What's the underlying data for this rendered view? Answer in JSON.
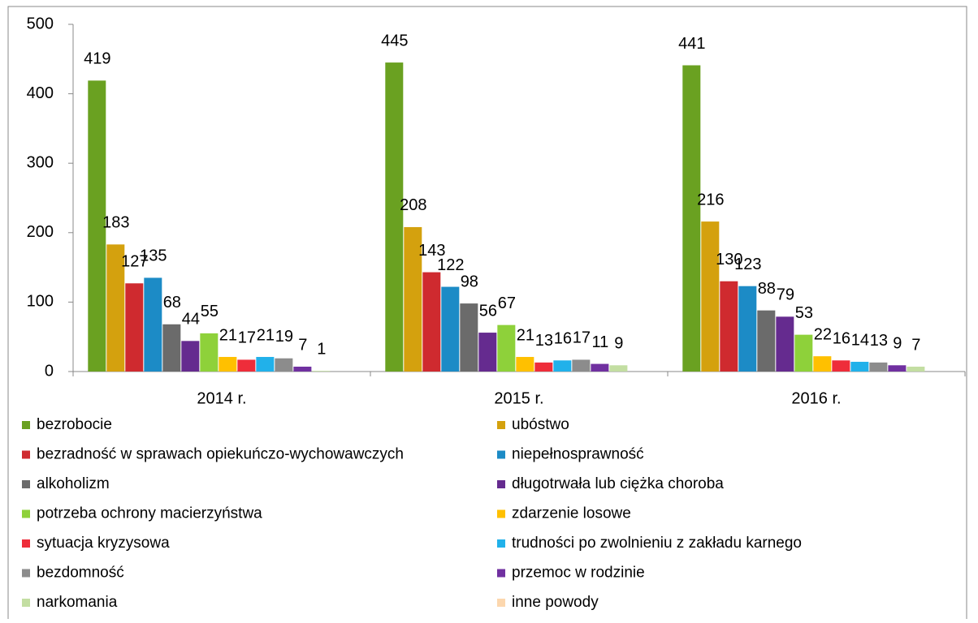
{
  "chart_data": {
    "type": "bar",
    "categories": [
      "2014 r.",
      "2015 r.",
      "2016 r."
    ],
    "ylim": [
      0,
      500
    ],
    "yticks": [
      0,
      100,
      200,
      300,
      400,
      500
    ],
    "grid": false,
    "legend": "bottom",
    "series": [
      {
        "name": "bezrobocie",
        "color": "#6aa121",
        "values": [
          419,
          445,
          441
        ]
      },
      {
        "name": "ubóstwo",
        "color": "#d4a10e",
        "values": [
          183,
          208,
          216
        ]
      },
      {
        "name": "bezradność w sprawach opiekuńczo-wychowawczych",
        "color": "#cf2a2f",
        "values": [
          127,
          143,
          130
        ]
      },
      {
        "name": "niepełnosprawność",
        "color": "#1c8bc6",
        "values": [
          135,
          122,
          123
        ]
      },
      {
        "name": "alkoholizm",
        "color": "#6b6b6b",
        "values": [
          68,
          98,
          88
        ]
      },
      {
        "name": "długotrwała lub ciężka choroba",
        "color": "#652b8f",
        "values": [
          44,
          56,
          79
        ]
      },
      {
        "name": "potrzeba ochrony macierzyństwa",
        "color": "#8ed13a",
        "values": [
          55,
          67,
          53
        ]
      },
      {
        "name": "zdarzenie losowe",
        "color": "#ffc000",
        "values": [
          21,
          21,
          22
        ]
      },
      {
        "name": "sytuacja kryzysowa",
        "color": "#ee2d3a",
        "values": [
          17,
          13,
          16
        ]
      },
      {
        "name": "trudności po zwolnieniu z zakładu karnego",
        "color": "#21b1ea",
        "values": [
          21,
          16,
          14
        ]
      },
      {
        "name": "bezdomność",
        "color": "#8c8c8c",
        "values": [
          19,
          17,
          13
        ]
      },
      {
        "name": "przemoc w rodzinie",
        "color": "#7030a0",
        "values": [
          7,
          11,
          9
        ]
      },
      {
        "name": "narkomania",
        "color": "#c3dea2",
        "values": [
          1,
          9,
          7
        ]
      },
      {
        "name": "inne powody",
        "color": "#fcd7ae",
        "values": [
          null,
          null,
          null
        ]
      }
    ]
  }
}
